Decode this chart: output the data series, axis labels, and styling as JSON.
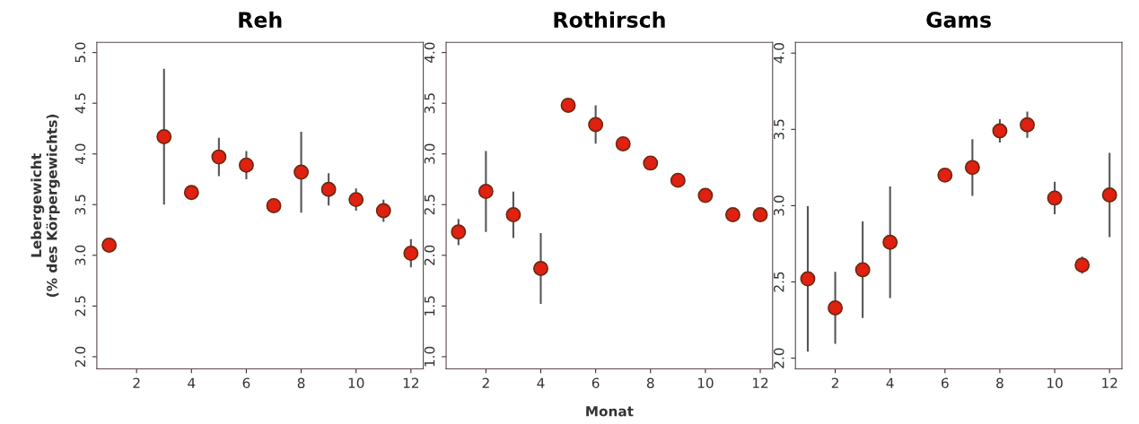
{
  "chart_data": [
    {
      "type": "scatter",
      "title": "Reh",
      "ylabel": "Lebergewicht\n(% des Körpergewichts)",
      "x": [
        1,
        3,
        4,
        5,
        6,
        7,
        8,
        9,
        10,
        11,
        12
      ],
      "xlim": [
        0.55,
        12.45
      ],
      "xticks": [
        2,
        4,
        6,
        8,
        10,
        12
      ],
      "ylim": [
        1.88,
        5.1
      ],
      "yticks": [
        {
          "value": 2.0,
          "label": "2.0"
        },
        {
          "value": 2.5,
          "label": "2.5"
        },
        {
          "value": 3.0,
          "label": "3.0"
        },
        {
          "value": 3.5,
          "label": "3.5"
        },
        {
          "value": 4.0,
          "label": "4.0"
        },
        {
          "value": 4.5,
          "label": "4.5"
        },
        {
          "value": 5.0,
          "label": "5.0"
        }
      ],
      "marker": "circle",
      "grid": false,
      "legend": false,
      "series": [
        {
          "color": "#e02010",
          "values": [
            3.1,
            4.17,
            3.62,
            3.97,
            3.89,
            3.49,
            3.82,
            3.65,
            3.55,
            3.44,
            3.02
          ],
          "errors": [
            null,
            0.66,
            null,
            0.18,
            0.13,
            null,
            0.39,
            0.15,
            0.1,
            0.1,
            0.13
          ]
        }
      ]
    },
    {
      "type": "scatter",
      "title": "Rothirsch",
      "xlabel": "Monat",
      "x": [
        1,
        2,
        3,
        4,
        5,
        6,
        7,
        8,
        9,
        10,
        11,
        12
      ],
      "xlim": [
        0.55,
        12.45
      ],
      "xticks": [
        2,
        4,
        6,
        8,
        10,
        12
      ],
      "ylim": [
        0.88,
        4.1
      ],
      "yticks": [
        {
          "value": 1.0,
          "label": "1.0"
        },
        {
          "value": 1.5,
          "label": "1.5"
        },
        {
          "value": 2.0,
          "label": "2.0"
        },
        {
          "value": 2.5,
          "label": "2.5"
        },
        {
          "value": 3.0,
          "label": "3.0"
        },
        {
          "value": 3.5,
          "label": "3.5"
        },
        {
          "value": 4.0,
          "label": "4.0"
        }
      ],
      "marker": "circle",
      "grid": false,
      "legend": false,
      "series": [
        {
          "color": "#e02010",
          "values": [
            2.23,
            2.63,
            2.4,
            1.87,
            3.48,
            3.29,
            3.1,
            2.91,
            2.74,
            2.59,
            2.4,
            2.4
          ],
          "errors": [
            0.12,
            0.39,
            0.22,
            0.34,
            null,
            0.18,
            null,
            null,
            null,
            null,
            null,
            null
          ]
        }
      ]
    },
    {
      "type": "scatter",
      "title": "Gams",
      "x": [
        1,
        2,
        3,
        4,
        6,
        7,
        8,
        9,
        10,
        11,
        12
      ],
      "xlim": [
        0.55,
        12.45
      ],
      "xticks": [
        2,
        4,
        6,
        8,
        10,
        12
      ],
      "ylim": [
        1.93,
        4.07
      ],
      "yticks": [
        {
          "value": 2.0,
          "label": "2.0"
        },
        {
          "value": 2.5,
          "label": "2.5"
        },
        {
          "value": 3.0,
          "label": "3.0"
        },
        {
          "value": 3.5,
          "label": "3.5"
        },
        {
          "value": 4.0,
          "label": "4.0"
        }
      ],
      "marker": "circle",
      "grid": false,
      "legend": false,
      "series": [
        {
          "color": "#e02010",
          "values": [
            2.52,
            2.33,
            2.58,
            2.76,
            3.2,
            3.25,
            3.49,
            3.53,
            3.05,
            2.61,
            3.07
          ],
          "errors": [
            0.47,
            0.23,
            0.31,
            0.36,
            null,
            0.18,
            0.07,
            0.08,
            0.1,
            0.05,
            0.27
          ]
        }
      ]
    }
  ]
}
